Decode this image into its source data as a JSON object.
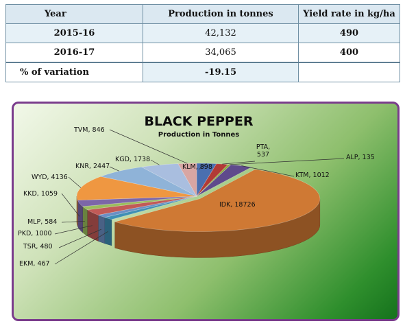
{
  "table": {
    "headers": [
      "Year",
      "Production in tonnes",
      "Yield rate in kg/ha"
    ],
    "rows": [
      [
        "2015-16",
        "42,132",
        "490"
      ],
      [
        "2016-17",
        "34,065",
        "400"
      ],
      [
        "% of variation",
        "-19.15",
        ""
      ]
    ]
  },
  "chart_data": {
    "type": "pie",
    "title": "BLACK PEPPER",
    "subtitle": "Production in Tonnes",
    "labels": [
      "KLM",
      "PTA",
      "ALP",
      "KTM",
      "IDK",
      "EKM",
      "TSR",
      "PKD",
      "MLP",
      "KKD",
      "WYD",
      "KNR",
      "KGD",
      "TVM"
    ],
    "values": [
      898,
      537,
      135,
      1012,
      18726,
      467,
      480,
      1000,
      584,
      1059,
      4136,
      2447,
      1738,
      846
    ],
    "data_labels": [
      "KLM, 898",
      "PTA, 537",
      "ALP, 135",
      "KTM, 1012",
      "IDK, 18726",
      "EKM, 467",
      "TSR, 480",
      "PKD, 1000",
      "MLP, 584",
      "KKD, 1059",
      "WYD, 4136",
      "KNR, 2447",
      "KGD, 1738",
      "TVM, 846"
    ],
    "colors": [
      "#4a6fb0",
      "#b23a36",
      "#8aab3e",
      "#5f4a8c",
      "#cf7934",
      "#3f8fb5",
      "#6c8fc4",
      "#c25a57",
      "#9bbd5d",
      "#7c66a8",
      "#ef9741",
      "#8fb3d8",
      "#a9bedf",
      "#d8a6a3"
    ],
    "style": "3d-exploded",
    "legend": "none"
  }
}
